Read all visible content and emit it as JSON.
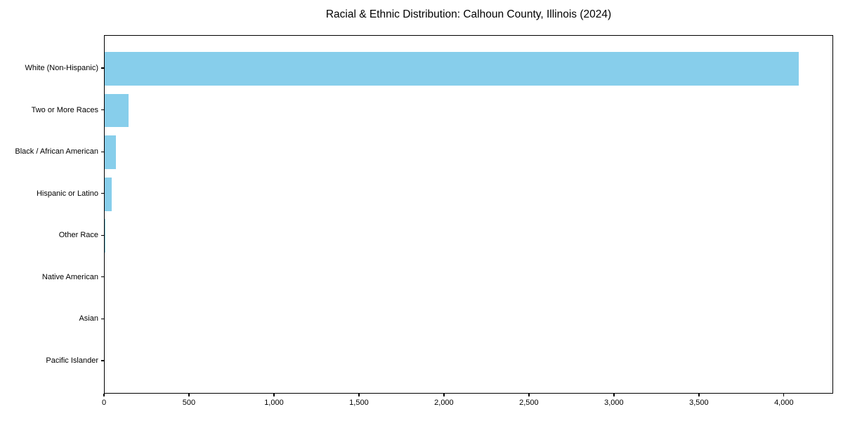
{
  "title": "Racial & Ethnic Distribution: Calhoun County, Illinois (2024)",
  "chart_data": {
    "type": "bar",
    "orientation": "horizontal",
    "title": "Racial & Ethnic Distribution: Calhoun County, Illinois (2024)",
    "xlabel": "",
    "ylabel": "",
    "categories": [
      "White (Non-Hispanic)",
      "Two or More Races",
      "Black / African American",
      "Hispanic or Latino",
      "Other Race",
      "Native American",
      "Asian",
      "Pacific Islander"
    ],
    "values": [
      4083,
      139,
      68,
      40,
      5,
      0,
      0,
      0
    ],
    "xlim": [
      0,
      4290
    ],
    "x_ticks": [
      0,
      500,
      1000,
      1500,
      2000,
      2500,
      3000,
      3500,
      4000
    ],
    "x_tick_labels": [
      "0",
      "500",
      "1,000",
      "1,500",
      "2,000",
      "2,500",
      "3,000",
      "3,500",
      "4,000"
    ],
    "bar_color": "#87CEEB",
    "axis_color": "#000000",
    "grid": false,
    "legend": false
  }
}
